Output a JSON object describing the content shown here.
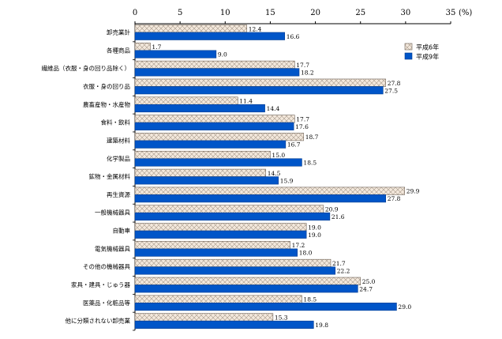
{
  "chart_data": {
    "type": "bar",
    "orientation": "horizontal",
    "xlim": [
      0,
      35
    ],
    "x_ticks": [
      0,
      5,
      10,
      15,
      20,
      25,
      30,
      35
    ],
    "x_unit": "(%)",
    "grid": false,
    "legend_position": "top-right",
    "categories": [
      "卸売業計",
      "各種商品",
      "繊維品（衣服・身の回り品除く）",
      "衣服・身の回り品",
      "農畜産物・水産物",
      "食料・飲料",
      "建築材料",
      "化学製品",
      "鉱物・金属材料",
      "再生資源",
      "一般機械器具",
      "自動車",
      "電気機械器具",
      "その他の機械器具",
      "家具・建具・じゅう器",
      "医薬品・化粧品等",
      "他に分類されない卸売業"
    ],
    "series": [
      {
        "name": "平成6年",
        "color": "#f2e6d9",
        "pattern": "crosshatch",
        "values": [
          12.4,
          1.7,
          17.7,
          27.8,
          11.4,
          17.7,
          18.7,
          15.0,
          14.5,
          29.9,
          20.9,
          19.0,
          17.2,
          21.7,
          25.0,
          18.5,
          15.3
        ],
        "labels": [
          "12.4",
          "1.7",
          "17.7",
          "27.8",
          "11.4",
          "17.7",
          "18.7",
          "15.0",
          "14.5",
          "29.9",
          "20.9",
          "19.0",
          "17.2",
          "21.7",
          "25.0",
          "18.5",
          "15.3"
        ]
      },
      {
        "name": "平成9年",
        "color": "#0055c8",
        "pattern": "solid",
        "values": [
          16.6,
          9.0,
          18.2,
          27.5,
          14.4,
          17.6,
          16.7,
          18.5,
          15.9,
          27.8,
          21.6,
          19.0,
          18.0,
          22.2,
          24.7,
          29.0,
          19.8
        ],
        "labels": [
          "16.6",
          "9.0",
          "18.2",
          "27.5",
          "14.4",
          "17.6",
          "16.7",
          "18.5",
          "15.9",
          "27.8",
          "21.6",
          "19.0",
          "18.0",
          "22.2",
          "24.7",
          "29.0",
          "19.8"
        ]
      }
    ]
  }
}
